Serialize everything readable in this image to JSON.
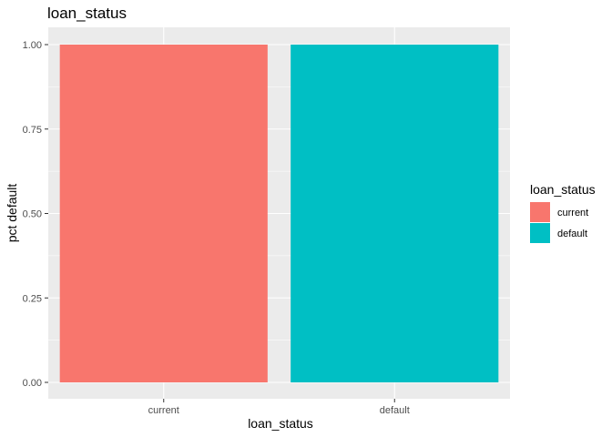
{
  "chart_data": {
    "type": "bar",
    "title": "loan_status",
    "xlabel": "loan_status",
    "ylabel": "pct default",
    "categories": [
      "current",
      "default"
    ],
    "values": [
      1.0,
      1.0
    ],
    "colors": [
      "#F8766D",
      "#00BFC4"
    ],
    "ylim": [
      0,
      1.0
    ],
    "yticks": [
      "0.00",
      "0.25",
      "0.50",
      "0.75",
      "1.00"
    ],
    "ytick_values": [
      0,
      0.25,
      0.5,
      0.75,
      1.0
    ],
    "grid": true,
    "panel_background": "#EBEBEB",
    "legend": {
      "title": "loan_status",
      "position": "right",
      "entries": [
        "current",
        "default"
      ]
    }
  }
}
